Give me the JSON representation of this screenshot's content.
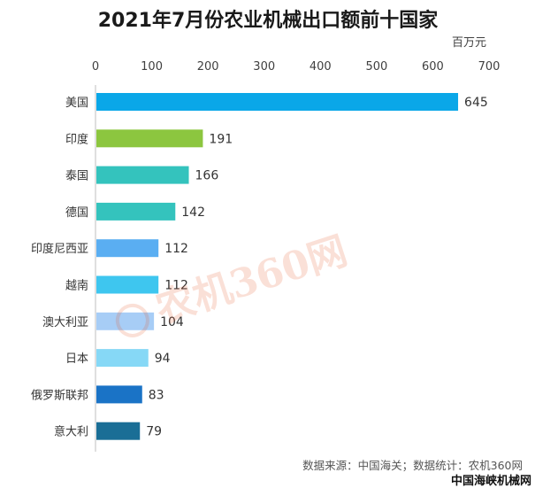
{
  "chart_data": {
    "type": "bar",
    "orientation": "horizontal",
    "title": "2021年7月份农业机械出口额前十国家",
    "unit": "百万元",
    "categories": [
      "美国",
      "印度",
      "泰国",
      "德国",
      "印度尼西亚",
      "越南",
      "澳大利亚",
      "日本",
      "俄罗斯联邦",
      "意大利"
    ],
    "values": [
      645,
      191,
      166,
      142,
      112,
      112,
      104,
      94,
      83,
      79
    ],
    "colors": [
      "#0aa7e8",
      "#8cc63f",
      "#34c3bd",
      "#34c3bd",
      "#5aaef2",
      "#3ec6ef",
      "#a7cdf6",
      "#86d8f6",
      "#1a73c6",
      "#1a6e96"
    ],
    "xlim": [
      0,
      700
    ],
    "ticks": [
      0,
      100,
      200,
      300,
      400,
      500,
      600,
      700
    ],
    "tick_labels": [
      "0",
      "100",
      "200",
      "300",
      "400",
      "500",
      "600",
      "700"
    ],
    "value_labels": [
      "645",
      "191",
      "166",
      "142",
      "112",
      "112",
      "104",
      "94",
      "83",
      "79"
    ],
    "axis_position": "top",
    "grid": false,
    "legend": "none",
    "source": "数据来源：中国海关；数据统计：农机360网",
    "watermark_logo": "农机360网",
    "corner_watermark": "中国海峡机械网"
  }
}
